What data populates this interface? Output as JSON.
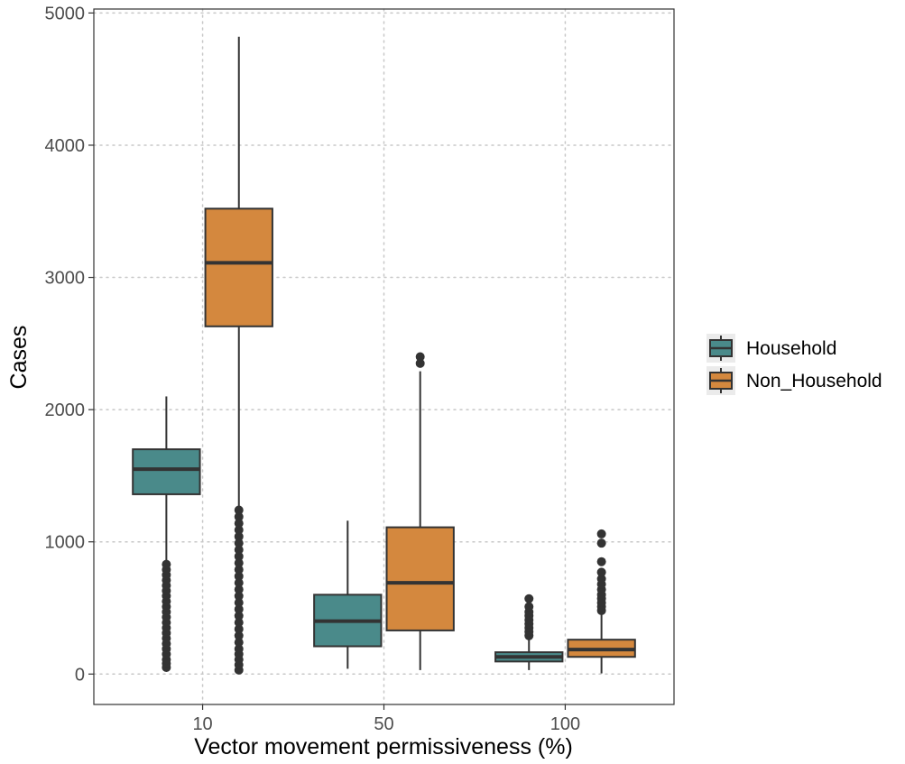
{
  "chart_data": {
    "type": "boxplot",
    "xlabel": "Vector movement permissiveness (%)",
    "ylabel": "Cases",
    "categories": [
      "10",
      "50",
      "100"
    ],
    "ylim": [
      -230,
      5030
    ],
    "yticks": [
      0,
      1000,
      2000,
      3000,
      4000,
      5000
    ],
    "grid": true,
    "legend_position": "right",
    "series": [
      {
        "name": "Household",
        "color": "#4a8a8a",
        "boxes": [
          {
            "category": "10",
            "min": 840,
            "q1": 1360,
            "median": 1550,
            "q3": 1700,
            "max": 2100,
            "outliers": [
              50,
              80,
              110,
              150,
              190,
              230,
              270,
              310,
              350,
              390,
              430,
              470,
              510,
              550,
              590,
              630,
              670,
              710,
              750,
              790,
              830
            ]
          },
          {
            "category": "50",
            "min": 40,
            "q1": 210,
            "median": 400,
            "q3": 600,
            "max": 1160,
            "outliers": []
          },
          {
            "category": "100",
            "min": 30,
            "q1": 95,
            "median": 130,
            "q3": 165,
            "max": 270,
            "outliers": [
              290,
              320,
              350,
              380,
              410,
              440,
              470,
              510,
              570
            ]
          }
        ]
      },
      {
        "name": "Non_Household",
        "color": "#d4883e",
        "boxes": [
          {
            "category": "10",
            "min": 1270,
            "q1": 2630,
            "median": 3110,
            "q3": 3520,
            "max": 4820,
            "outliers": [
              30,
              70,
              110,
              150,
              190,
              240,
              290,
              340,
              390,
              440,
              490,
              540,
              590,
              640,
              690,
              740,
              790,
              840,
              890,
              940,
              990,
              1040,
              1090,
              1140,
              1190,
              1240
            ]
          },
          {
            "category": "50",
            "min": 30,
            "q1": 330,
            "median": 690,
            "q3": 1110,
            "max": 2290,
            "outliers": [
              2350,
              2400
            ]
          },
          {
            "category": "100",
            "min": 5,
            "q1": 130,
            "median": 185,
            "q3": 260,
            "max": 450,
            "outliers": [
              480,
              510,
              540,
              570,
              600,
              640,
              680,
              720,
              770,
              850,
              990,
              1060
            ]
          }
        ]
      }
    ]
  }
}
